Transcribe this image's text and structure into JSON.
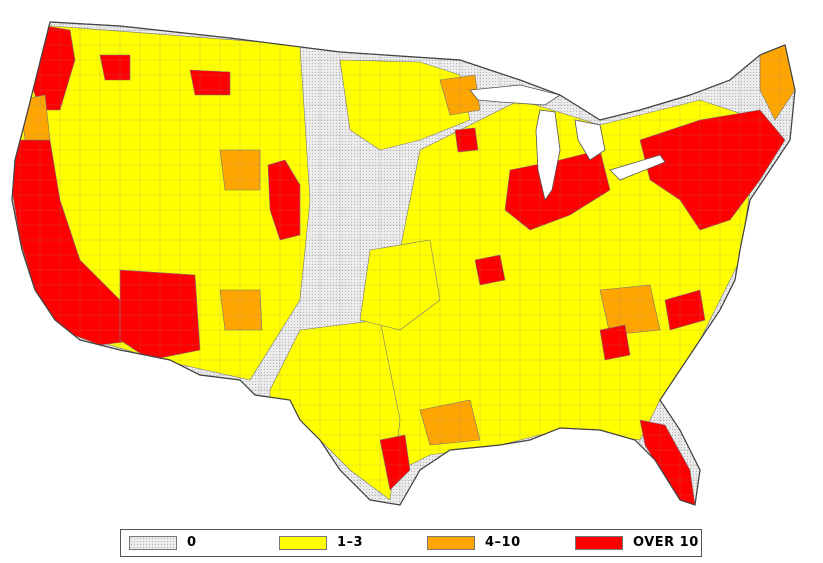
{
  "legend": {
    "items": [
      {
        "label": "0",
        "color": "#e2e2e2",
        "pattern": "dotted-gray"
      },
      {
        "label": "1–3",
        "color": "#ffff00"
      },
      {
        "label": "4–10",
        "color": "#ffa500"
      },
      {
        "label": "OVER 10",
        "color": "#ff0000"
      }
    ]
  },
  "map": {
    "region": "contiguous-united-states",
    "units": "counties",
    "colors": {
      "zero": "#e2e2e2",
      "low": "#ffff00",
      "mid": "#ffa500",
      "high": "#ff0000",
      "border": "#6a6a6a"
    }
  }
}
